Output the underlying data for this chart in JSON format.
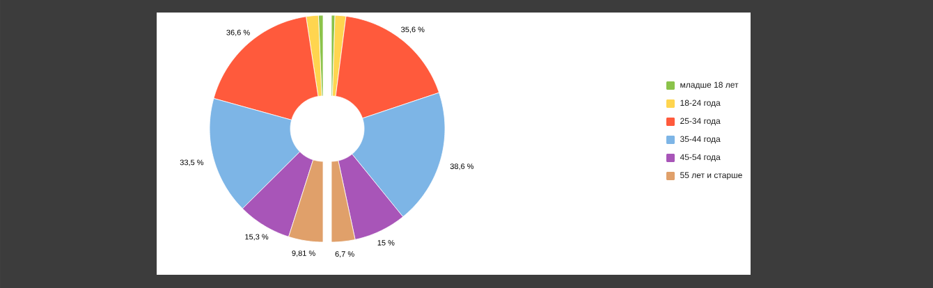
{
  "chart_data": [
    {
      "type": "donut",
      "categories": [
        "младше 18 лет",
        "18-24 года",
        "25-34 года",
        "35-44 года",
        "45-54 года",
        "55 лет и старше"
      ],
      "values": [
        1.3,
        3.49,
        36.6,
        33.5,
        15.3,
        9.81
      ],
      "colors": [
        "#8bc34a",
        "#ffd54f",
        "#ff5a3c",
        "#7db5e6",
        "#a855b8",
        "#e0a06a"
      ],
      "value_labels": [
        null,
        null,
        "36,6 %",
        "33,5 %",
        "15,3 %",
        "9,81 %"
      ],
      "legend": "right"
    },
    {
      "type": "donut",
      "categories": [
        null,
        null,
        null,
        null,
        null,
        null
      ],
      "values": [
        1.0,
        3.1,
        35.6,
        38.6,
        15,
        6.7
      ],
      "colors": [
        "#8bc34a",
        "#ffd54f",
        "#ff5a3c",
        "#7db5e6",
        "#a855b8",
        "#e0a06a"
      ],
      "value_labels": [
        null,
        null,
        "35,6 %",
        "38,6 %",
        "15 %",
        "6,7 %"
      ]
    }
  ]
}
